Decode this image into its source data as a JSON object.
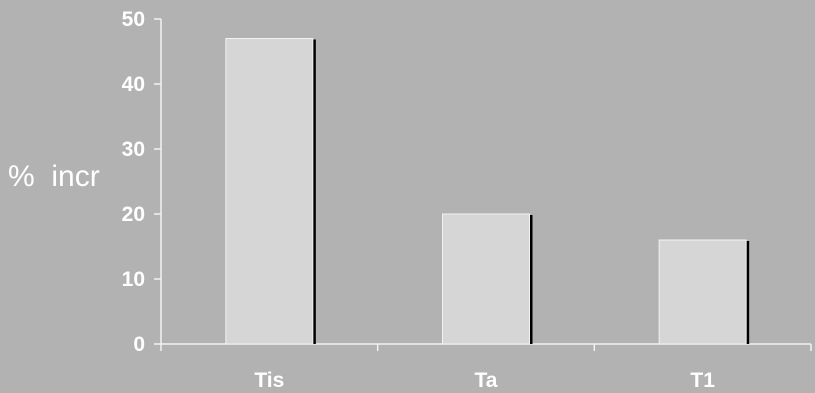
{
  "chart_data": {
    "type": "bar",
    "categories": [
      "Tis",
      "Ta",
      "T1"
    ],
    "values": [
      47,
      20,
      16
    ],
    "title": "",
    "xlabel": "",
    "ylabel": "%  incr",
    "ylim": [
      0,
      50
    ],
    "yticks": [
      "0",
      "10",
      "20",
      "30",
      "40",
      "50"
    ],
    "grid": false,
    "colors": {
      "background": "#b2b2b2",
      "bar_fill": "#d6d6d6",
      "bar_edge": "#f2f2f2",
      "bar_shadow": "#000000",
      "axis": "#f2f2f2",
      "text": "#ffffff"
    }
  }
}
